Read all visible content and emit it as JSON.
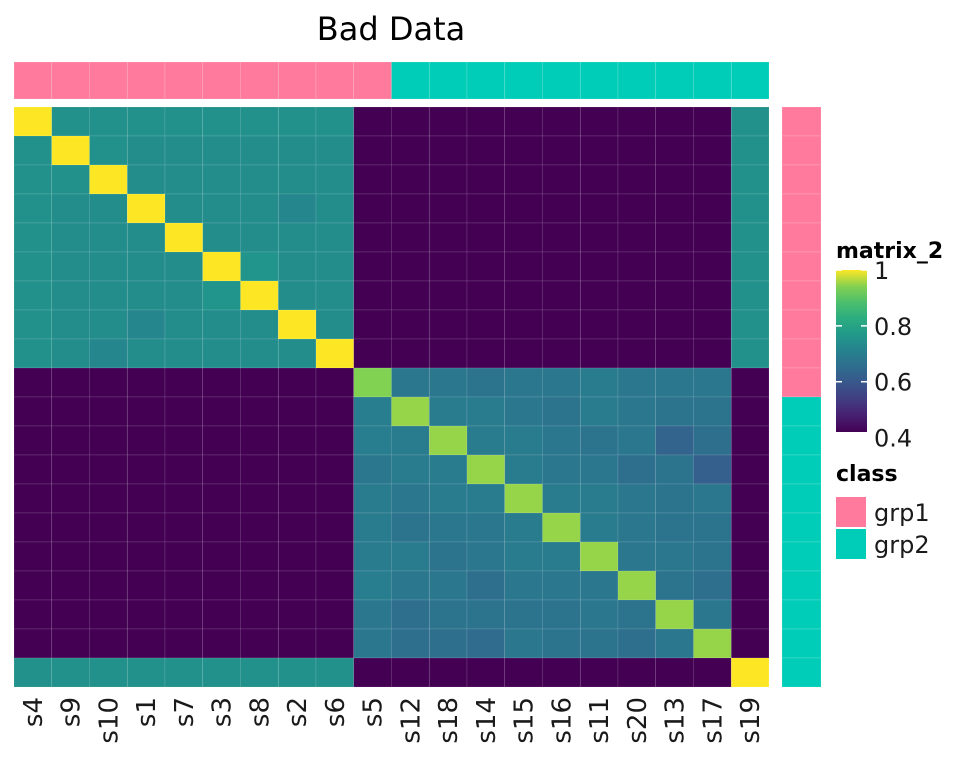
{
  "chart_data": {
    "type": "heatmap",
    "title": "Bad Data",
    "xlabel": "",
    "ylabel": "",
    "samples": [
      "s4",
      "s9",
      "s10",
      "s1",
      "s7",
      "s3",
      "s8",
      "s2",
      "s6",
      "s5",
      "s12",
      "s18",
      "s14",
      "s15",
      "s16",
      "s11",
      "s20",
      "s13",
      "s17",
      "s19"
    ],
    "class_labels": [
      "grp1",
      "grp1",
      "grp1",
      "grp1",
      "grp1",
      "grp1",
      "grp1",
      "grp1",
      "grp1",
      "grp1",
      "grp2",
      "grp2",
      "grp2",
      "grp2",
      "grp2",
      "grp2",
      "grp2",
      "grp2",
      "grp2",
      "grp2"
    ],
    "row_order": [
      "s4",
      "s9",
      "s10",
      "s1",
      "s7",
      "s3",
      "s8",
      "s2",
      "s6",
      "s5",
      "s12",
      "s18",
      "s14",
      "s15",
      "s16",
      "s11",
      "s20",
      "s13",
      "s17",
      "s19"
    ],
    "color_scale": {
      "name": "matrix_2",
      "palette": "viridis",
      "breaks": [
        1,
        0.8,
        0.6,
        0.4
      ],
      "range": [
        0.42,
        1.0
      ]
    },
    "class_legend": {
      "title": "class",
      "entries": [
        {
          "label": "grp1",
          "color": "#FF7A9C"
        },
        {
          "label": "grp2",
          "color": "#00CDB8"
        }
      ]
    },
    "matrix": [
      [
        1.0,
        0.75,
        0.75,
        0.75,
        0.75,
        0.75,
        0.75,
        0.75,
        0.75,
        0.42,
        0.42,
        0.42,
        0.42,
        0.42,
        0.42,
        0.42,
        0.42,
        0.42,
        0.42,
        0.75
      ],
      [
        0.75,
        1.0,
        0.75,
        0.74,
        0.74,
        0.74,
        0.74,
        0.74,
        0.74,
        0.42,
        0.42,
        0.42,
        0.42,
        0.42,
        0.42,
        0.42,
        0.42,
        0.42,
        0.42,
        0.75
      ],
      [
        0.75,
        0.75,
        1.0,
        0.74,
        0.74,
        0.74,
        0.74,
        0.74,
        0.74,
        0.42,
        0.42,
        0.42,
        0.42,
        0.42,
        0.42,
        0.42,
        0.42,
        0.42,
        0.42,
        0.75
      ],
      [
        0.75,
        0.74,
        0.74,
        1.0,
        0.74,
        0.74,
        0.74,
        0.72,
        0.74,
        0.42,
        0.42,
        0.42,
        0.42,
        0.42,
        0.42,
        0.42,
        0.42,
        0.42,
        0.42,
        0.75
      ],
      [
        0.75,
        0.74,
        0.74,
        0.74,
        1.0,
        0.74,
        0.74,
        0.74,
        0.74,
        0.42,
        0.42,
        0.42,
        0.42,
        0.42,
        0.42,
        0.42,
        0.42,
        0.42,
        0.42,
        0.75
      ],
      [
        0.75,
        0.74,
        0.74,
        0.74,
        0.74,
        1.0,
        0.76,
        0.74,
        0.74,
        0.42,
        0.42,
        0.42,
        0.42,
        0.42,
        0.42,
        0.42,
        0.42,
        0.42,
        0.42,
        0.75
      ],
      [
        0.75,
        0.74,
        0.74,
        0.74,
        0.74,
        0.76,
        1.0,
        0.74,
        0.74,
        0.42,
        0.42,
        0.42,
        0.42,
        0.42,
        0.42,
        0.42,
        0.42,
        0.42,
        0.42,
        0.75
      ],
      [
        0.75,
        0.74,
        0.74,
        0.72,
        0.74,
        0.74,
        0.74,
        1.0,
        0.74,
        0.42,
        0.42,
        0.42,
        0.42,
        0.42,
        0.42,
        0.42,
        0.42,
        0.42,
        0.42,
        0.75
      ],
      [
        0.75,
        0.74,
        0.72,
        0.74,
        0.74,
        0.74,
        0.74,
        0.74,
        1.0,
        0.42,
        0.42,
        0.42,
        0.42,
        0.42,
        0.42,
        0.42,
        0.42,
        0.42,
        0.42,
        0.75
      ],
      [
        0.42,
        0.42,
        0.42,
        0.42,
        0.42,
        0.42,
        0.42,
        0.42,
        0.42,
        0.94,
        0.68,
        0.68,
        0.67,
        0.68,
        0.68,
        0.69,
        0.68,
        0.68,
        0.68,
        0.42
      ],
      [
        0.42,
        0.42,
        0.42,
        0.42,
        0.42,
        0.42,
        0.42,
        0.42,
        0.42,
        0.7,
        0.95,
        0.69,
        0.69,
        0.68,
        0.67,
        0.69,
        0.68,
        0.67,
        0.67,
        0.42
      ],
      [
        0.42,
        0.42,
        0.42,
        0.42,
        0.42,
        0.42,
        0.42,
        0.42,
        0.42,
        0.7,
        0.69,
        0.95,
        0.69,
        0.69,
        0.68,
        0.67,
        0.68,
        0.63,
        0.66,
        0.42
      ],
      [
        0.42,
        0.42,
        0.42,
        0.42,
        0.42,
        0.42,
        0.42,
        0.42,
        0.42,
        0.68,
        0.69,
        0.69,
        0.95,
        0.69,
        0.68,
        0.68,
        0.66,
        0.67,
        0.62,
        0.42
      ],
      [
        0.42,
        0.42,
        0.42,
        0.42,
        0.42,
        0.42,
        0.42,
        0.42,
        0.42,
        0.69,
        0.68,
        0.69,
        0.69,
        0.95,
        0.69,
        0.69,
        0.68,
        0.67,
        0.68,
        0.42
      ],
      [
        0.42,
        0.42,
        0.42,
        0.42,
        0.42,
        0.42,
        0.42,
        0.42,
        0.42,
        0.69,
        0.67,
        0.68,
        0.68,
        0.69,
        0.95,
        0.69,
        0.68,
        0.67,
        0.67,
        0.42
      ],
      [
        0.42,
        0.42,
        0.42,
        0.42,
        0.42,
        0.42,
        0.42,
        0.42,
        0.42,
        0.69,
        0.69,
        0.67,
        0.68,
        0.69,
        0.69,
        0.95,
        0.68,
        0.68,
        0.67,
        0.42
      ],
      [
        0.42,
        0.42,
        0.42,
        0.42,
        0.42,
        0.42,
        0.42,
        0.42,
        0.42,
        0.7,
        0.68,
        0.68,
        0.66,
        0.68,
        0.68,
        0.68,
        0.95,
        0.67,
        0.66,
        0.42
      ],
      [
        0.42,
        0.42,
        0.42,
        0.42,
        0.42,
        0.42,
        0.42,
        0.42,
        0.42,
        0.68,
        0.66,
        0.67,
        0.67,
        0.67,
        0.67,
        0.68,
        0.67,
        0.95,
        0.68,
        0.42
      ],
      [
        0.42,
        0.42,
        0.42,
        0.42,
        0.42,
        0.42,
        0.42,
        0.42,
        0.42,
        0.68,
        0.66,
        0.66,
        0.65,
        0.68,
        0.67,
        0.67,
        0.66,
        0.68,
        0.95,
        0.42
      ],
      [
        0.75,
        0.75,
        0.75,
        0.75,
        0.75,
        0.75,
        0.75,
        0.75,
        0.75,
        0.42,
        0.42,
        0.42,
        0.42,
        0.42,
        0.42,
        0.42,
        0.42,
        0.42,
        0.42,
        1.0
      ]
    ]
  }
}
